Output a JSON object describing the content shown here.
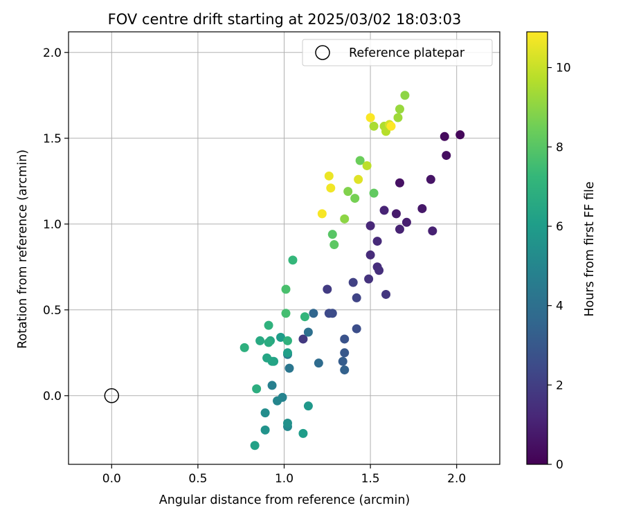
{
  "chart_data": {
    "type": "scatter",
    "title": "FOV centre drift starting at 2025/03/02 18:03:03",
    "xlabel": "Angular distance from reference (arcmin)",
    "ylabel": "Rotation from reference (arcmin)",
    "xlim": [
      -0.25,
      2.25
    ],
    "ylim": [
      -0.4,
      2.12
    ],
    "xticks": [
      "0.0",
      "0.5",
      "1.0",
      "1.5",
      "2.0"
    ],
    "yticks": [
      "0.0",
      "0.5",
      "1.0",
      "1.5",
      "2.0"
    ],
    "grid": true,
    "legend": {
      "position": "top-right",
      "entries": [
        "Reference platepar"
      ]
    },
    "reference_point": {
      "x": 0.0,
      "y": 0.0
    },
    "colorbar": {
      "label": "Hours from first FF file",
      "colormap": "viridis",
      "range": [
        0,
        10.9
      ],
      "ticks": [
        "0",
        "2",
        "4",
        "6",
        "8",
        "10"
      ]
    },
    "points": [
      {
        "x": 2.02,
        "y": 1.52,
        "h": 0.2
      },
      {
        "x": 1.93,
        "y": 1.51,
        "h": 0.3
      },
      {
        "x": 1.94,
        "y": 1.4,
        "h": 0.4
      },
      {
        "x": 1.67,
        "y": 1.24,
        "h": 0.5
      },
      {
        "x": 1.85,
        "y": 1.26,
        "h": 0.6
      },
      {
        "x": 1.8,
        "y": 1.09,
        "h": 0.7
      },
      {
        "x": 1.65,
        "y": 1.06,
        "h": 0.8
      },
      {
        "x": 1.71,
        "y": 1.01,
        "h": 0.9
      },
      {
        "x": 1.86,
        "y": 0.96,
        "h": 1.0
      },
      {
        "x": 1.67,
        "y": 0.97,
        "h": 1.05
      },
      {
        "x": 1.58,
        "y": 1.08,
        "h": 1.1
      },
      {
        "x": 1.5,
        "y": 0.99,
        "h": 1.2
      },
      {
        "x": 1.54,
        "y": 0.9,
        "h": 1.3
      },
      {
        "x": 1.5,
        "y": 0.82,
        "h": 1.35
      },
      {
        "x": 1.54,
        "y": 0.75,
        "h": 1.4
      },
      {
        "x": 1.55,
        "y": 0.73,
        "h": 1.45
      },
      {
        "x": 1.49,
        "y": 0.68,
        "h": 1.6
      },
      {
        "x": 1.59,
        "y": 0.59,
        "h": 1.7
      },
      {
        "x": 1.11,
        "y": 0.33,
        "h": 1.8
      },
      {
        "x": 1.25,
        "y": 0.62,
        "h": 1.9
      },
      {
        "x": 1.4,
        "y": 0.66,
        "h": 2.1
      },
      {
        "x": 1.42,
        "y": 0.57,
        "h": 2.2
      },
      {
        "x": 1.26,
        "y": 0.48,
        "h": 2.4
      },
      {
        "x": 1.28,
        "y": 0.48,
        "h": 2.5
      },
      {
        "x": 1.42,
        "y": 0.39,
        "h": 2.6
      },
      {
        "x": 1.35,
        "y": 0.33,
        "h": 2.8
      },
      {
        "x": 1.35,
        "y": 0.25,
        "h": 3.0
      },
      {
        "x": 1.34,
        "y": 0.2,
        "h": 3.2
      },
      {
        "x": 1.35,
        "y": 0.15,
        "h": 3.4
      },
      {
        "x": 1.17,
        "y": 0.48,
        "h": 3.6
      },
      {
        "x": 1.2,
        "y": 0.19,
        "h": 3.8
      },
      {
        "x": 1.14,
        "y": 0.37,
        "h": 4.0
      },
      {
        "x": 1.03,
        "y": 0.16,
        "h": 4.3
      },
      {
        "x": 1.02,
        "y": 0.24,
        "h": 4.5
      },
      {
        "x": 0.93,
        "y": 0.06,
        "h": 4.7
      },
      {
        "x": 0.99,
        "y": -0.01,
        "h": 4.9
      },
      {
        "x": 0.96,
        "y": -0.03,
        "h": 5.0
      },
      {
        "x": 1.02,
        "y": -0.18,
        "h": 5.1
      },
      {
        "x": 0.89,
        "y": -0.1,
        "h": 5.3
      },
      {
        "x": 1.02,
        "y": -0.16,
        "h": 5.5
      },
      {
        "x": 0.89,
        "y": -0.2,
        "h": 5.6
      },
      {
        "x": 1.14,
        "y": -0.06,
        "h": 5.8
      },
      {
        "x": 1.11,
        "y": -0.22,
        "h": 6.0
      },
      {
        "x": 0.83,
        "y": -0.29,
        "h": 6.2
      },
      {
        "x": 0.98,
        "y": 0.34,
        "h": 6.0
      },
      {
        "x": 1.02,
        "y": 0.25,
        "h": 6.1
      },
      {
        "x": 0.94,
        "y": 0.2,
        "h": 6.3
      },
      {
        "x": 0.93,
        "y": 0.2,
        "h": 6.35
      },
      {
        "x": 0.9,
        "y": 0.22,
        "h": 6.4
      },
      {
        "x": 0.92,
        "y": 0.32,
        "h": 6.5
      },
      {
        "x": 0.86,
        "y": 0.32,
        "h": 6.6
      },
      {
        "x": 0.91,
        "y": 0.31,
        "h": 6.7
      },
      {
        "x": 0.84,
        "y": 0.04,
        "h": 6.8
      },
      {
        "x": 0.77,
        "y": 0.28,
        "h": 6.9
      },
      {
        "x": 0.91,
        "y": 0.41,
        "h": 7.0
      },
      {
        "x": 1.02,
        "y": 0.32,
        "h": 7.0
      },
      {
        "x": 1.12,
        "y": 0.46,
        "h": 7.1
      },
      {
        "x": 1.05,
        "y": 0.79,
        "h": 7.2
      },
      {
        "x": 1.01,
        "y": 0.48,
        "h": 7.6
      },
      {
        "x": 1.01,
        "y": 0.62,
        "h": 7.7
      },
      {
        "x": 1.28,
        "y": 0.94,
        "h": 8.0
      },
      {
        "x": 1.29,
        "y": 0.88,
        "h": 8.1
      },
      {
        "x": 1.52,
        "y": 1.18,
        "h": 8.2
      },
      {
        "x": 1.44,
        "y": 1.37,
        "h": 8.4
      },
      {
        "x": 1.41,
        "y": 1.15,
        "h": 8.6
      },
      {
        "x": 1.37,
        "y": 1.19,
        "h": 8.8
      },
      {
        "x": 1.35,
        "y": 1.03,
        "h": 9.0
      },
      {
        "x": 1.7,
        "y": 1.75,
        "h": 9.0
      },
      {
        "x": 1.67,
        "y": 1.67,
        "h": 9.2
      },
      {
        "x": 1.66,
        "y": 1.62,
        "h": 9.3
      },
      {
        "x": 1.52,
        "y": 1.57,
        "h": 9.5
      },
      {
        "x": 1.58,
        "y": 1.57,
        "h": 9.6
      },
      {
        "x": 1.59,
        "y": 1.54,
        "h": 9.7
      },
      {
        "x": 1.48,
        "y": 1.34,
        "h": 9.8
      },
      {
        "x": 1.61,
        "y": 1.58,
        "h": 10.2
      },
      {
        "x": 1.43,
        "y": 1.26,
        "h": 10.4
      },
      {
        "x": 1.26,
        "y": 1.28,
        "h": 10.6
      },
      {
        "x": 1.27,
        "y": 1.21,
        "h": 10.7
      },
      {
        "x": 1.22,
        "y": 1.06,
        "h": 10.8
      },
      {
        "x": 1.5,
        "y": 1.62,
        "h": 10.85
      },
      {
        "x": 1.62,
        "y": 1.57,
        "h": 10.9
      }
    ]
  }
}
